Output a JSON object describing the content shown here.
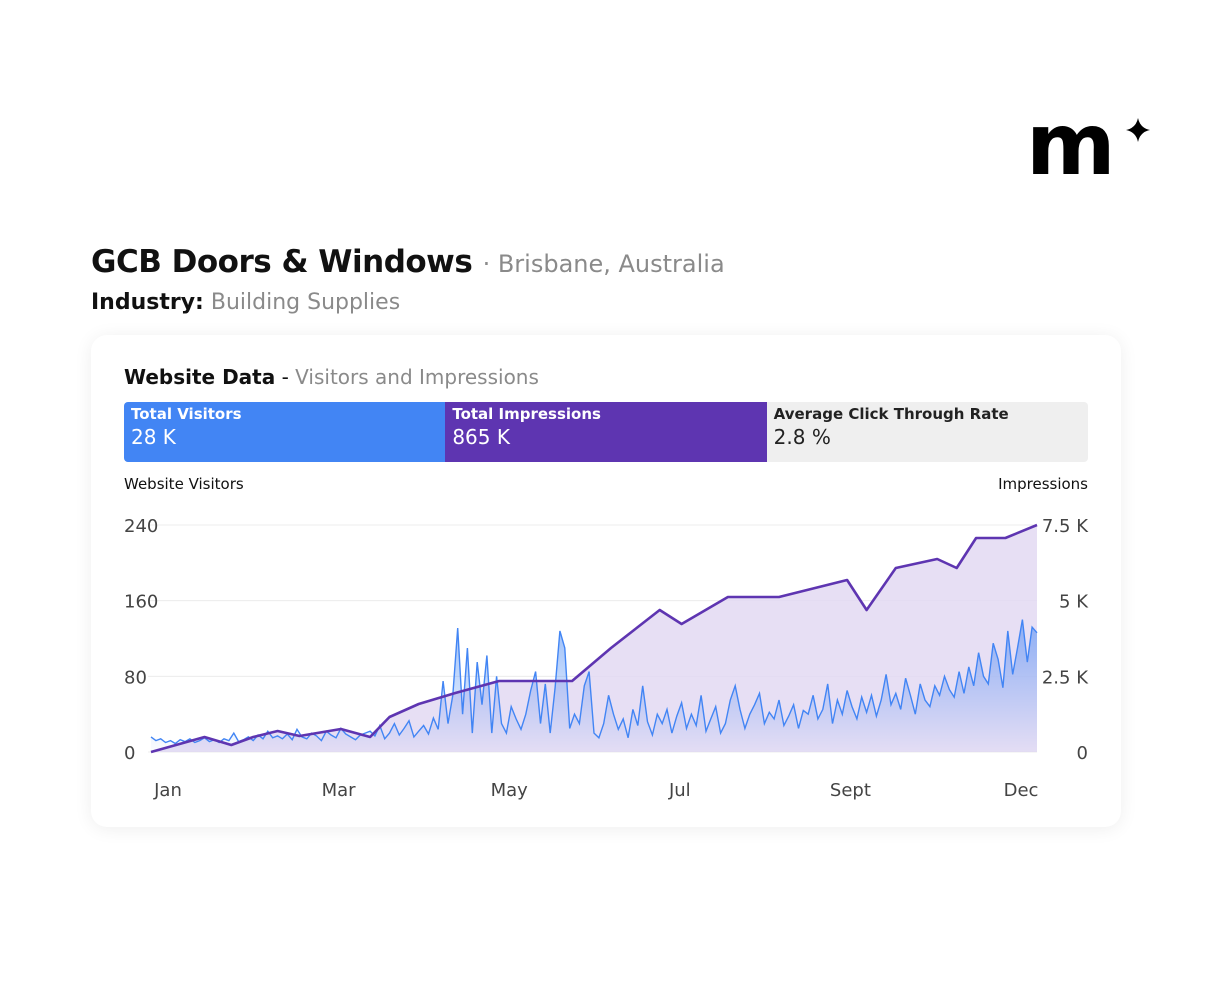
{
  "brand": {
    "logo_text": "m",
    "logo_icon": "sparkle-icon"
  },
  "header": {
    "company": "GCB Doors & Windows",
    "location": "· Brisbane, Australia",
    "industry_label": "Industry:",
    "industry_value": "Building Supplies"
  },
  "card": {
    "title": "Website Data",
    "separator": " - ",
    "subtitle": "Visitors and Impressions",
    "stats": [
      {
        "label": "Total Visitors",
        "value": "28 K",
        "color": "#4285F4"
      },
      {
        "label": "Total Impressions",
        "value": "865 K",
        "color": "#5E35B1"
      },
      {
        "label": "Average Click Through Rate",
        "value": "2.8 %",
        "color": "#EFEFEF"
      }
    ]
  },
  "chart_data": {
    "type": "line",
    "ylabel": "Website Visitors",
    "y2label": "Impressions",
    "x_ticks": [
      "Jan",
      "Mar",
      "May",
      "Jul",
      "Sept",
      "Dec"
    ],
    "y_ticks": [
      "0",
      "80",
      "160",
      "240"
    ],
    "y2_ticks": [
      "0",
      "2.5 K",
      "5 K",
      "7.5 K"
    ],
    "ylim": [
      0,
      240
    ],
    "y2lim": [
      0,
      7500
    ],
    "grid": true,
    "series": [
      {
        "name": "Website Visitors",
        "axis": "left",
        "color": "#4285F4",
        "fill": "gradient",
        "values": [
          16,
          12,
          14,
          10,
          12,
          9,
          13,
          11,
          14,
          10,
          12,
          15,
          11,
          13,
          10,
          14,
          12,
          20,
          11,
          13,
          16,
          12,
          18,
          14,
          22,
          15,
          17,
          14,
          19,
          13,
          24,
          16,
          14,
          20,
          17,
          12,
          22,
          18,
          15,
          25,
          19,
          16,
          13,
          18,
          20,
          22,
          17,
          28,
          14,
          20,
          30,
          18,
          25,
          33,
          16,
          22,
          28,
          19,
          36,
          24,
          75,
          30,
          60,
          131,
          40,
          110,
          20,
          95,
          50,
          102,
          20,
          80,
          30,
          20,
          48,
          35,
          24,
          40,
          65,
          85,
          30,
          72,
          20,
          68,
          128,
          110,
          25,
          40,
          30,
          70,
          85,
          20,
          15,
          30,
          60,
          40,
          24,
          35,
          15,
          45,
          28,
          70,
          32,
          18,
          40,
          30,
          45,
          20,
          38,
          52,
          25,
          40,
          28,
          60,
          22,
          35,
          48,
          20,
          30,
          55,
          70,
          45,
          25,
          40,
          50,
          62,
          30,
          42,
          35,
          55,
          28,
          38,
          50,
          25,
          44,
          40,
          60,
          35,
          45,
          72,
          30,
          55,
          40,
          65,
          48,
          35,
          58,
          42,
          60,
          38,
          55,
          82,
          50,
          62,
          45,
          78,
          60,
          40,
          72,
          55,
          48,
          70,
          60,
          80,
          66,
          58,
          85,
          62,
          90,
          70,
          105,
          80,
          72,
          115,
          98,
          68,
          128,
          82,
          110,
          140,
          95,
          132,
          126
        ]
      },
      {
        "name": "Impressions",
        "axis": "right",
        "color": "#5E35B1",
        "fill": "#E3D9F2",
        "points": [
          [
            "Jan 1",
            0
          ],
          [
            "Jan 23",
            496
          ],
          [
            "Feb 3",
            231
          ],
          [
            "Feb 12",
            496
          ],
          [
            "Feb 22",
            694
          ],
          [
            "Mar 3",
            529
          ],
          [
            "Mar 20",
            760
          ],
          [
            "Apr 1",
            496
          ],
          [
            "Apr 9",
            1156
          ],
          [
            "Apr 21",
            1586
          ],
          [
            "May 6",
            1949
          ],
          [
            "May 24",
            2346
          ],
          [
            "Jun 23",
            2346
          ],
          [
            "Jul 9",
            3436
          ],
          [
            "Jul 29",
            4692
          ],
          [
            "Aug 7",
            4229
          ],
          [
            "Aug 26",
            5121
          ],
          [
            "Sep 16",
            5121
          ],
          [
            "Oct 14",
            5683
          ],
          [
            "Oct 22",
            4692
          ],
          [
            "Nov 3",
            6079
          ],
          [
            "Nov 20",
            6377
          ],
          [
            "Nov 28",
            6079
          ],
          [
            "Dec 6",
            7070
          ],
          [
            "Dec 18",
            7070
          ],
          [
            "Dec 31",
            7500
          ]
        ]
      }
    ]
  }
}
